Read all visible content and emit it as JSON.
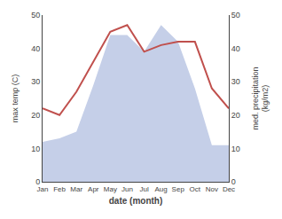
{
  "chart_data": {
    "type": "line",
    "categories": [
      "Jan",
      "Feb",
      "Mar",
      "Apr",
      "May",
      "Jun",
      "Jul",
      "Aug",
      "Sep",
      "Oct",
      "Nov",
      "Dec"
    ],
    "series": [
      {
        "type": "area",
        "color": "#c5cfe8",
        "values": [
          12,
          13,
          15,
          29,
          44,
          44,
          39,
          47,
          42,
          28,
          11,
          11
        ]
      },
      {
        "type": "line",
        "color": "#c0504d",
        "values": [
          22,
          20,
          27,
          36,
          45,
          47,
          39,
          41,
          42,
          42,
          28,
          22
        ]
      }
    ],
    "xlabel": "date (month)",
    "ylabel": "max temp (C)",
    "y2label": "med. precipitation\n(kg/m2)",
    "ylim": [
      0,
      50
    ],
    "yticks": [
      0,
      10,
      20,
      30,
      40,
      50
    ],
    "y2lim": [
      0,
      50
    ],
    "y2ticks": [
      0,
      10,
      20,
      30,
      40,
      50
    ],
    "grid": false
  }
}
